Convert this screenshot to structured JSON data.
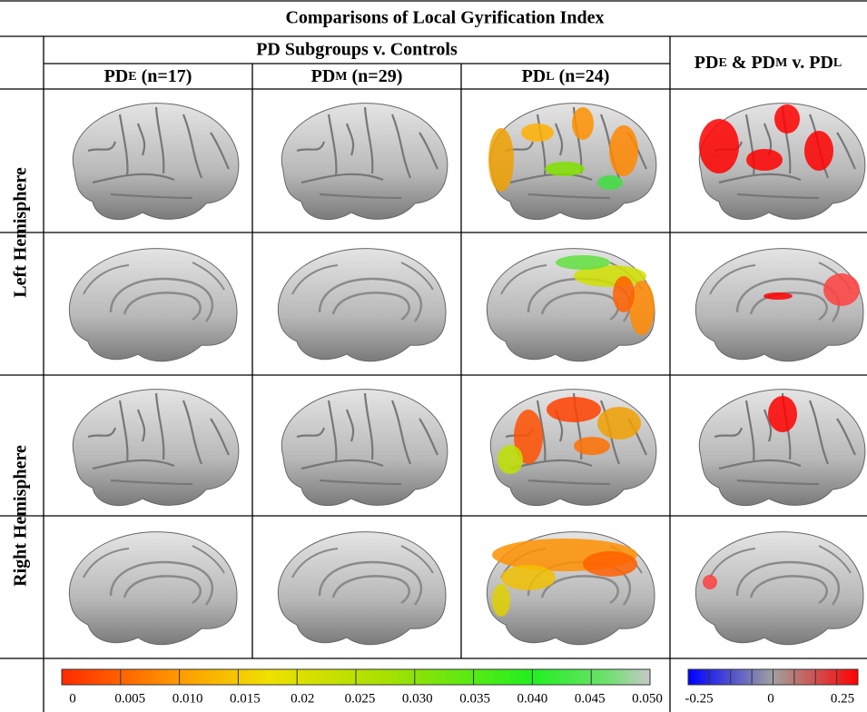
{
  "title": "Comparisons of Local Gyrification Index",
  "group_header": "PD Subgroups v. Controls",
  "columns": [
    [
      {
        "text": "PD"
      },
      {
        "text": "E",
        "sub": true
      },
      {
        "text": " (n=17)"
      }
    ],
    [
      {
        "text": "PD"
      },
      {
        "text": "M",
        "sub": true
      },
      {
        "text": " (n=29)"
      }
    ],
    [
      {
        "text": "PD"
      },
      {
        "text": "L",
        "sub": true
      },
      {
        "text": " (n=24)"
      }
    ]
  ],
  "comparison_header": [
    {
      "text": "PD"
    },
    {
      "text": "E",
      "sub": true
    },
    {
      "text": " & PD"
    },
    {
      "text": "M",
      "sub": true
    },
    {
      "text": " v. PD"
    },
    {
      "text": "L",
      "sub": true
    }
  ],
  "rows": [
    "Left Hemisphere",
    "Right Hemisphere"
  ],
  "colorbars": [
    {
      "ticks": [
        "0",
        "0.005",
        "0.010",
        "0.015",
        "0.02",
        "0.025",
        "0.030",
        "0.035",
        "0.040",
        "0.045",
        "0.050"
      ]
    },
    {
      "ticks": [
        "-0.25",
        "0",
        "0.25"
      ]
    }
  ]
}
